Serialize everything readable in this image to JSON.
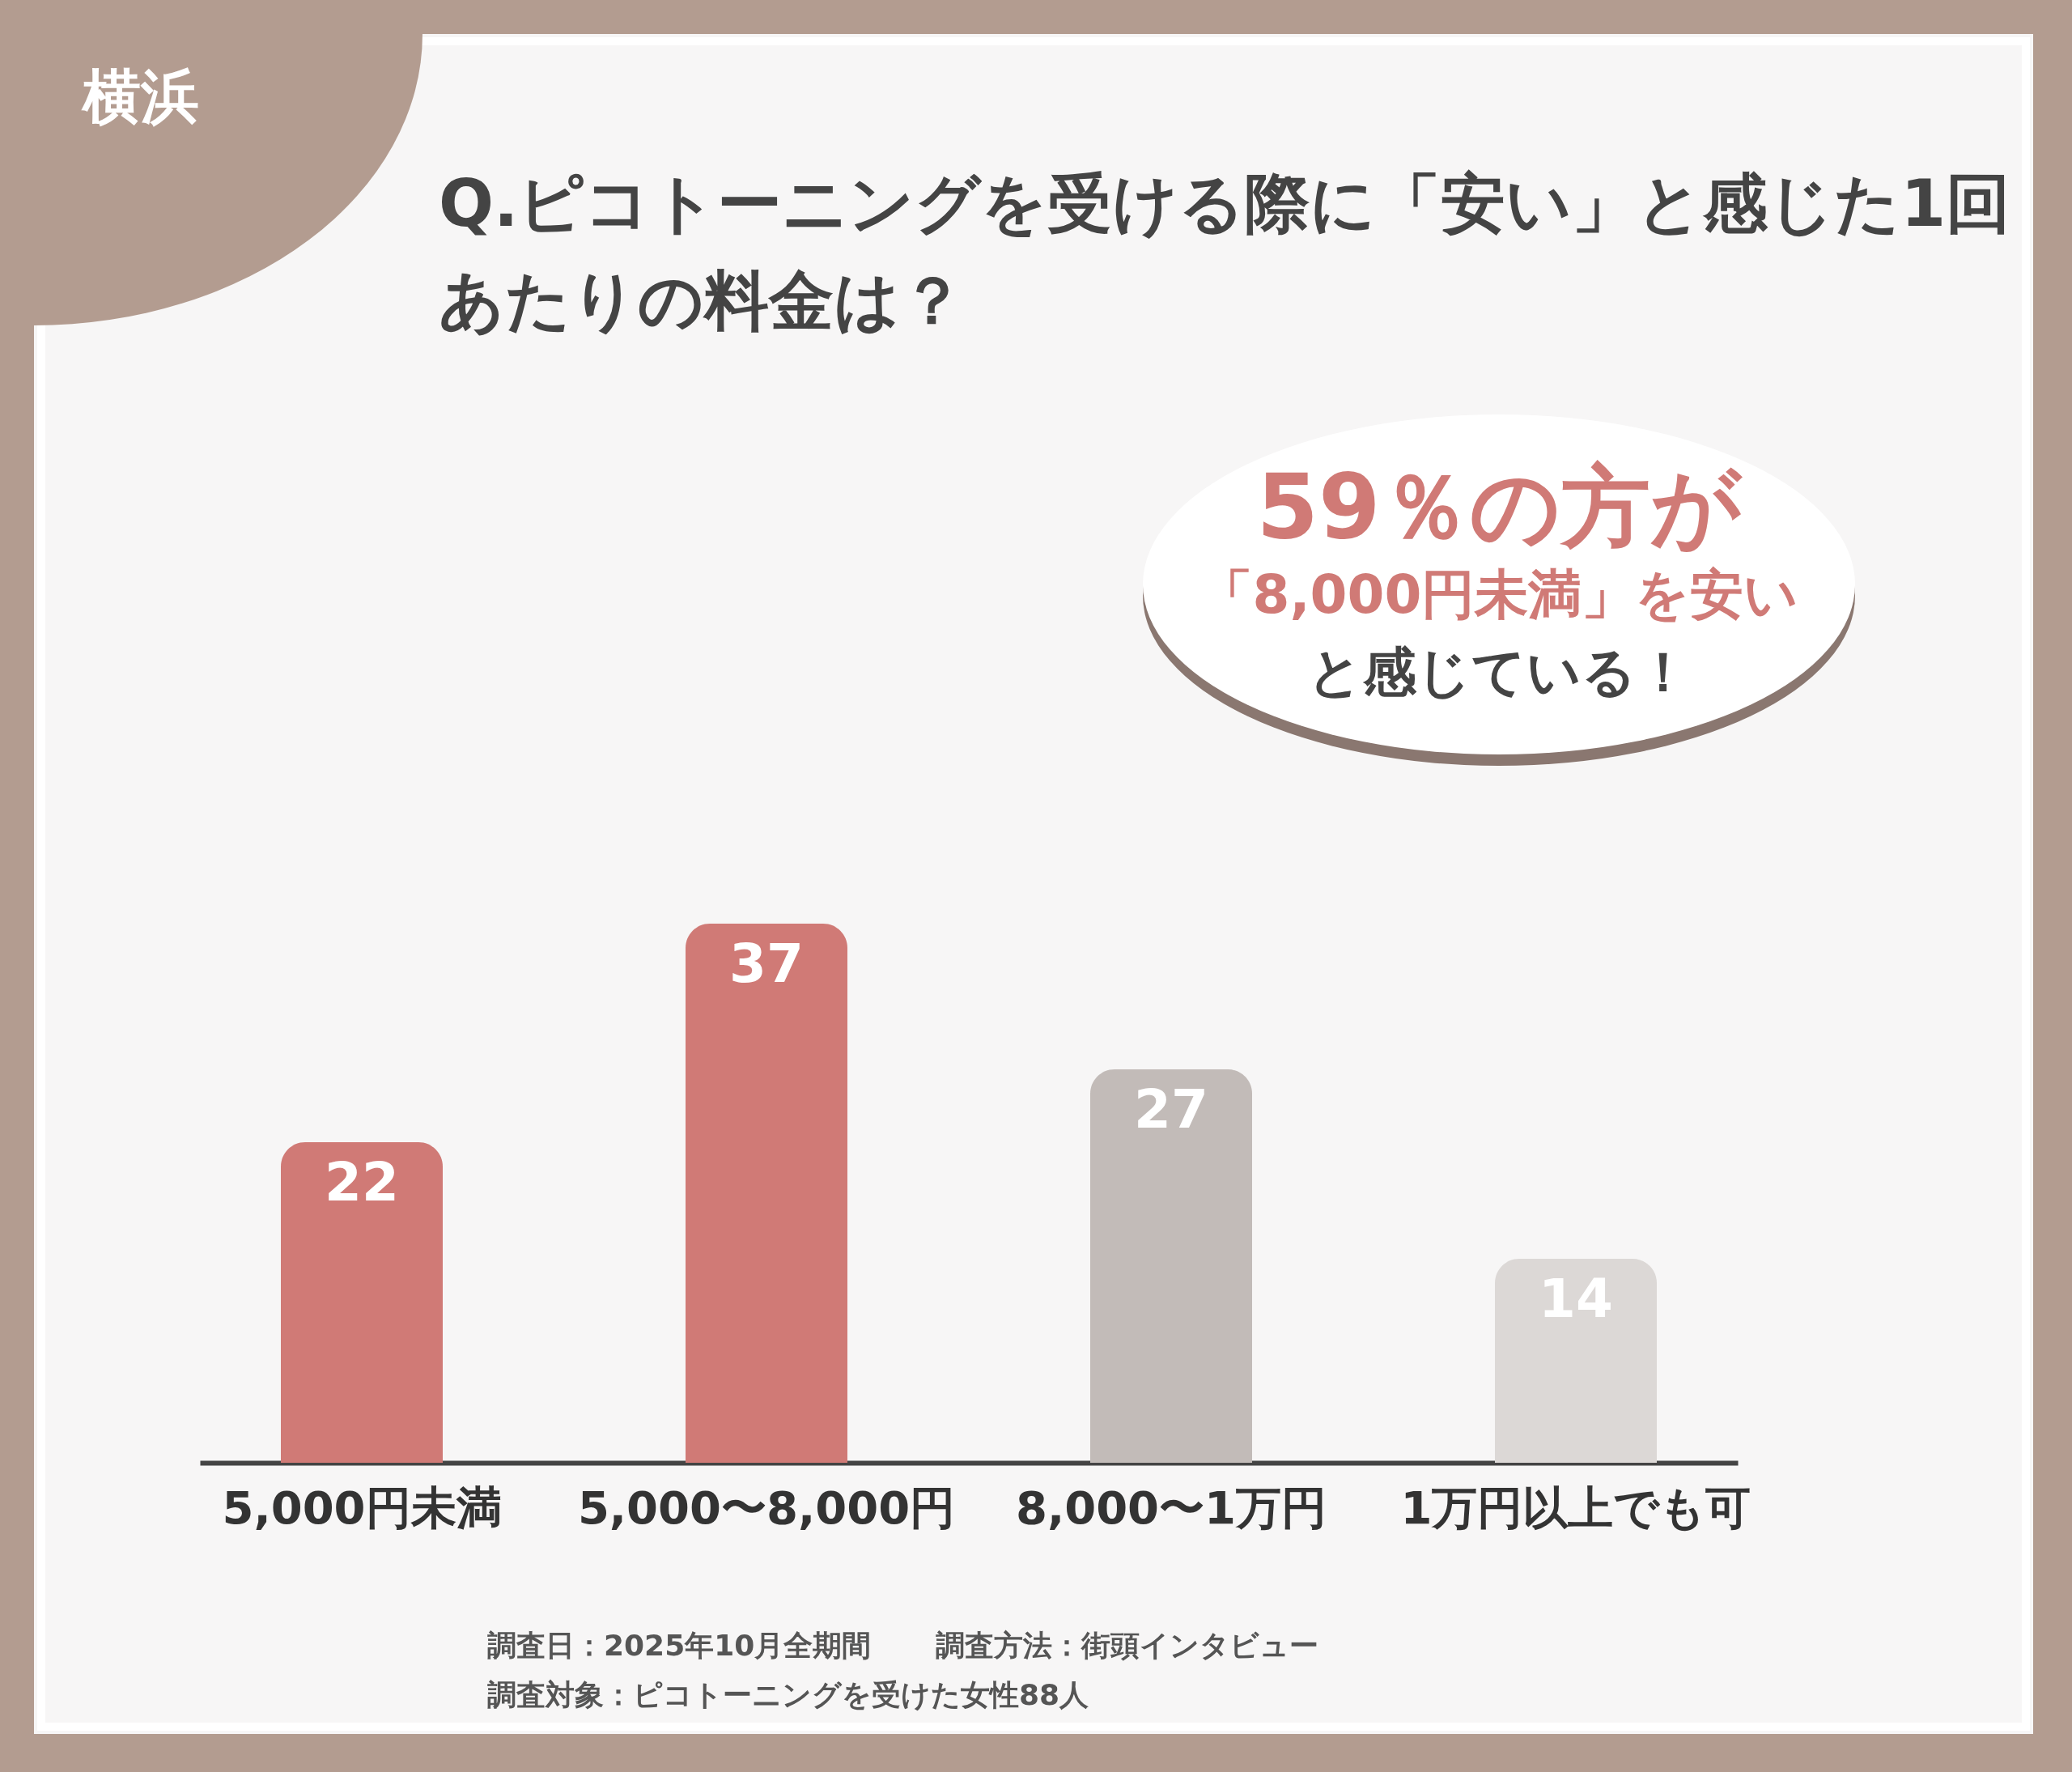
{
  "chart_data": {
    "type": "bar",
    "title": "Q.ピコトーニングを受ける際に「安い」と感じた1回あたりの料金は？",
    "categories": [
      "5,000円未満",
      "5,000〜8,000円",
      "8,000〜1万円",
      "1万円以上でも可"
    ],
    "values": [
      22,
      37,
      27,
      14
    ],
    "colors": [
      "#d07a76",
      "#d07a76",
      "#c2bbb8",
      "#dcd8d6"
    ],
    "data_labels": true,
    "grid": false,
    "legend": false,
    "annotations": [
      "横浜",
      "59％の方が",
      "「8,000円未満」を安い",
      "と感じている！",
      "調査日：2025年10月全期間",
      "調査方法：街頭インタビュー",
      "調査対象：ピコトーニングを受けた女性88人"
    ]
  }
}
